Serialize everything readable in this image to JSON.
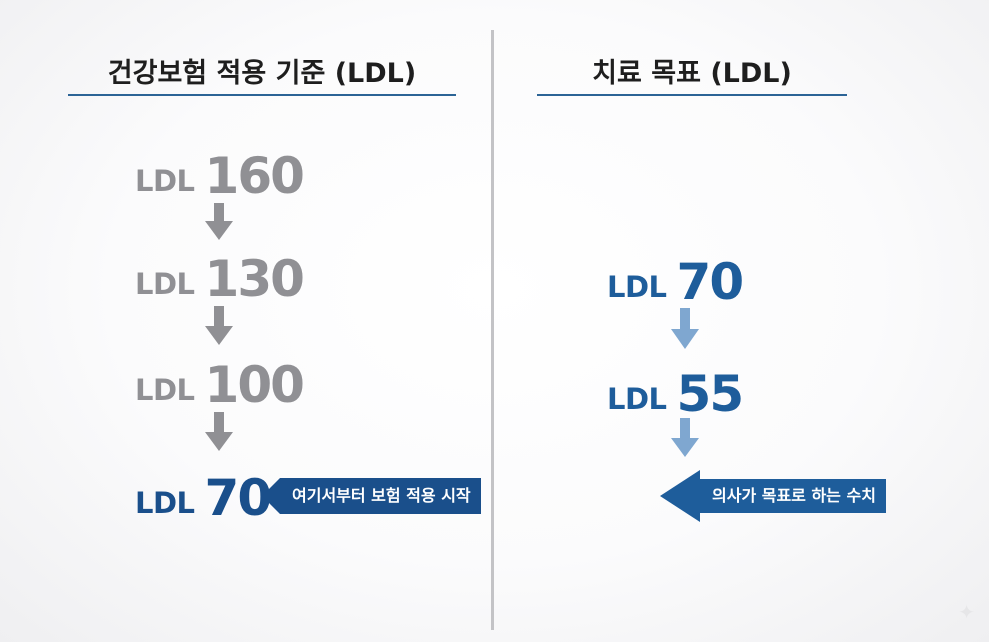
{
  "left_panel": {
    "title": "건강보험 적용 기준 (LDL)",
    "steps": [
      {
        "prefix": "LDL",
        "value": "160"
      },
      {
        "prefix": "LDL",
        "value": "130"
      },
      {
        "prefix": "LDL",
        "value": "100"
      },
      {
        "prefix": "LDL",
        "value": "70"
      }
    ],
    "callout": "여기서부터 보험 적용 시작"
  },
  "right_panel": {
    "title": "치료 목표 (LDL)",
    "steps": [
      {
        "prefix": "LDL",
        "value": "70"
      },
      {
        "prefix": "LDL",
        "value": "55"
      }
    ],
    "callout": "의사가 목표로 하는 수치"
  },
  "colors": {
    "grey_text": "#909094",
    "navy": "#1a4f8b",
    "blue": "#1e5d9b",
    "light_arrow": "#7fa7d0",
    "divider": "#c3c3c6"
  },
  "icons": {
    "down_arrow": "down-arrow-icon",
    "callout_arrow": "left-pointer-icon"
  }
}
